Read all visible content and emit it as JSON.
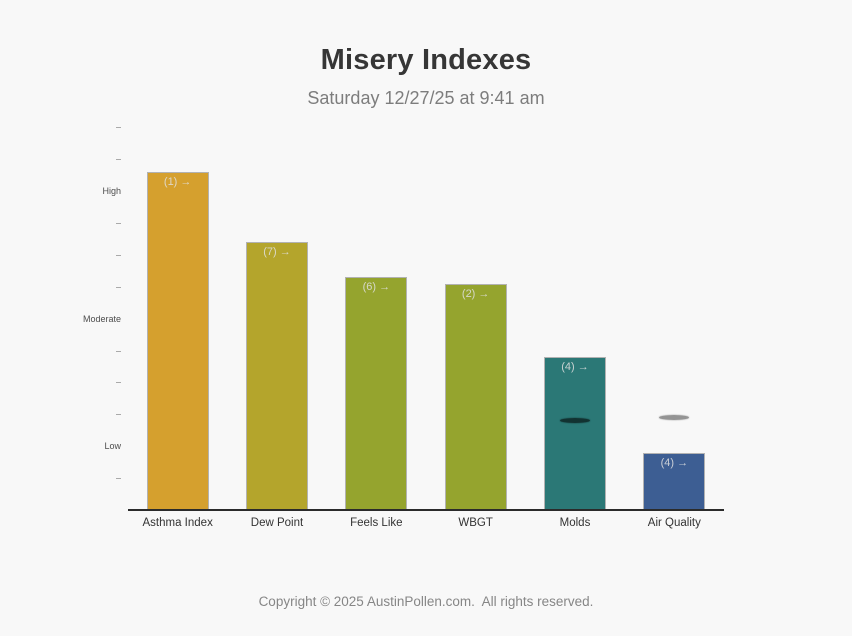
{
  "header": {
    "title": "Misery Indexes",
    "subtitle": "Saturday 12/27/25 at 9:41 am"
  },
  "footer": {
    "copyright": "Copyright © 2025 AustinPollen.com.  All rights reserved."
  },
  "chart_data": {
    "type": "bar",
    "title": "Misery Indexes",
    "subtitle": "Saturday 12/27/25 at 9:41 am",
    "categories": [
      "Asthma Index",
      "Dew Point",
      "Feels Like",
      "WBGT",
      "Molds",
      "Air Quality"
    ],
    "values": [
      10.6,
      8.4,
      7.3,
      7.1,
      4.8,
      1.8
    ],
    "bar_labels": [
      "(1) →",
      "(7) →",
      "(6) →",
      "(2) →",
      "(4) →",
      "(4) →"
    ],
    "bar_colors": [
      "#d5a02e",
      "#b4a52c",
      "#95a42e",
      "#95a42e",
      "#2b7876",
      "#3d5e93"
    ],
    "markers": [
      {
        "category": "Molds",
        "value": 2.8,
        "color": "rgba(12,32,32,0.8)"
      },
      {
        "category": "Air Quality",
        "value": 2.9,
        "color": "rgba(130,130,130,0.85)"
      }
    ],
    "ylim": [
      0,
      12.5
    ],
    "y_ticks": [
      1,
      2,
      3,
      4,
      5,
      6,
      7,
      8,
      9,
      10,
      11,
      12
    ],
    "y_level_labels": {
      "2": "Low",
      "6": "Moderate",
      "10": "High"
    },
    "grid": false,
    "legend": false,
    "background": "#f8f8f8",
    "axis_color": "#2b2b2b"
  }
}
